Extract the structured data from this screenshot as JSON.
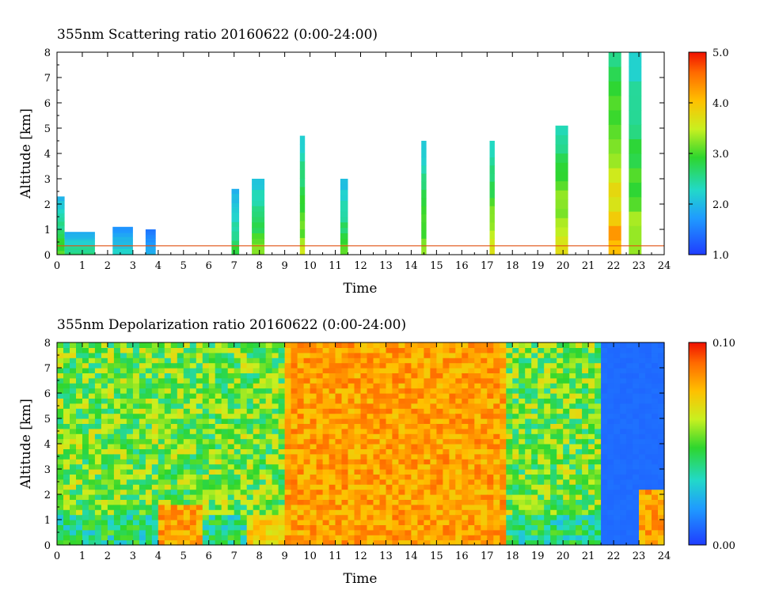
{
  "chart_data": [
    {
      "type": "heatmap",
      "title": "355nm Scattering ratio  20160622 (0:00-24:00)",
      "xlabel": "Time",
      "ylabel": "Altitude [km]",
      "xlim": [
        0,
        24
      ],
      "ylim": [
        0,
        8
      ],
      "x_ticks": [
        0,
        1,
        2,
        3,
        4,
        5,
        6,
        7,
        8,
        9,
        10,
        11,
        12,
        13,
        14,
        15,
        16,
        17,
        18,
        19,
        20,
        21,
        22,
        23,
        24
      ],
      "y_ticks": [
        0,
        1,
        2,
        3,
        4,
        5,
        6,
        7,
        8
      ],
      "colorbar": {
        "range": [
          1.0,
          5.0
        ],
        "ticks": [
          "1.0",
          "2.0",
          "3.0",
          "4.0",
          "5.0"
        ]
      },
      "background": "#ffffff",
      "features": [
        {
          "t": 0.0,
          "t2": 0.3,
          "alt_top": 2.3,
          "intensity": 3.2
        },
        {
          "t": 0.3,
          "t2": 1.5,
          "alt_top": 0.9,
          "intensity": 2.8
        },
        {
          "t": 2.2,
          "t2": 3.0,
          "alt_top": 1.1,
          "intensity": 2.4
        },
        {
          "t": 3.5,
          "t2": 3.9,
          "alt_top": 1.0,
          "intensity": 2.0
        },
        {
          "t": 6.9,
          "t2": 7.2,
          "alt_top": 2.6,
          "intensity": 3.0
        },
        {
          "t": 7.7,
          "t2": 8.2,
          "alt_top": 3.0,
          "intensity": 3.4
        },
        {
          "t": 9.6,
          "t2": 9.8,
          "alt_top": 4.7,
          "intensity": 3.6
        },
        {
          "t": 11.2,
          "t2": 11.5,
          "alt_top": 3.0,
          "intensity": 3.2
        },
        {
          "t": 14.4,
          "t2": 14.6,
          "alt_top": 4.5,
          "intensity": 3.5
        },
        {
          "t": 17.1,
          "t2": 17.3,
          "alt_top": 4.5,
          "intensity": 3.8
        },
        {
          "t": 19.7,
          "t2": 20.2,
          "alt_top": 5.1,
          "intensity": 4.0
        },
        {
          "t": 21.8,
          "t2": 22.3,
          "alt_top": 8.0,
          "intensity": 4.5
        },
        {
          "t": 22.6,
          "t2": 23.1,
          "alt_top": 8.0,
          "intensity": 3.6
        }
      ]
    },
    {
      "type": "heatmap",
      "title": "355nm Depolarization ratio  20160622 (0:00-24:00)",
      "xlabel": "Time",
      "ylabel": "Altitude [km]",
      "xlim": [
        0,
        24
      ],
      "ylim": [
        0,
        8
      ],
      "x_ticks": [
        0,
        1,
        2,
        3,
        4,
        5,
        6,
        7,
        8,
        9,
        10,
        11,
        12,
        13,
        14,
        15,
        16,
        17,
        18,
        19,
        20,
        21,
        22,
        23,
        24
      ],
      "y_ticks": [
        0,
        1,
        2,
        3,
        4,
        5,
        6,
        7,
        8
      ],
      "colorbar": {
        "range": [
          0.0,
          0.1
        ],
        "ticks": [
          "0.00",
          "0.10"
        ]
      },
      "features": [
        {
          "t": 4.0,
          "t2": 5.5,
          "alt_top": 1.5,
          "intensity": 0.09
        },
        {
          "t": 7.5,
          "t2": 9.5,
          "alt_top": 1.0,
          "intensity": 0.08
        },
        {
          "t": 9.0,
          "t2": 17.5,
          "alt_top": 8.0,
          "intensity": 0.09
        },
        {
          "t": 21.5,
          "t2": 24.0,
          "alt_top": 8.0,
          "intensity": 0.01
        },
        {
          "t": 23.0,
          "t2": 24.0,
          "alt_top": 2.0,
          "intensity": 0.09
        }
      ]
    }
  ]
}
